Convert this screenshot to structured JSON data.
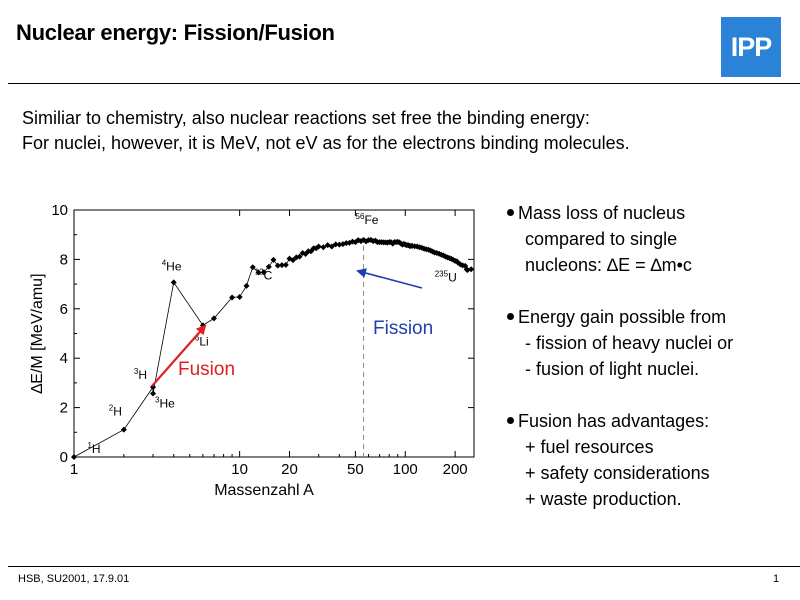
{
  "slide": {
    "title": "Nuclear energy: Fission/Fusion",
    "logo_text": "IPP",
    "logo_color": "#2a83d6",
    "intro_line1": "Similiar to chemistry, also nuclear  reactions set free the binding energy:",
    "intro_line2": "For nuclei,  however, it is MeV, not eV as for the electrons binding molecules.",
    "footer_left": "HSB, SU2001, 17.9.01",
    "page_number": "1"
  },
  "bullets": [
    {
      "lines": [
        "Mass loss of nucleus",
        "compared to single",
        "nucleons:   ∆E = ∆m•c"
      ]
    },
    {
      "lines": [
        "Energy gain possible from",
        "- fission of heavy nuclei  or",
        "- fusion of light nuclei."
      ]
    },
    {
      "lines": [
        "Fusion has advantages:",
        "+ fuel resources",
        "+ safety considerations",
        "+ waste production."
      ]
    }
  ],
  "chart_data": {
    "type": "scatter",
    "xlabel": "Massenzahl A",
    "ylabel": "∆E/M   [MeV/amu]",
    "x_scale": "log",
    "xlim": [
      1,
      260
    ],
    "ylim": [
      0,
      10
    ],
    "x_ticks": [
      1,
      10,
      20,
      50,
      100,
      200
    ],
    "y_ticks": [
      0,
      2,
      4,
      6,
      8,
      10
    ],
    "reference_line_x": 56,
    "series": [
      {
        "points": [
          [
            1,
            0
          ],
          [
            2,
            1.11
          ],
          [
            3,
            2.83
          ],
          [
            3,
            2.57
          ],
          [
            4,
            7.07
          ],
          [
            6,
            5.33
          ],
          [
            7,
            5.61
          ],
          [
            9,
            6.46
          ],
          [
            10,
            6.48
          ],
          [
            11,
            6.93
          ],
          [
            12,
            7.68
          ],
          [
            13,
            7.47
          ],
          [
            14,
            7.48
          ],
          [
            15,
            7.7
          ],
          [
            16,
            7.98
          ],
          [
            17,
            7.75
          ],
          [
            18,
            7.77
          ],
          [
            19,
            7.78
          ],
          [
            20,
            8.03
          ],
          [
            21,
            7.97
          ],
          [
            22,
            8.08
          ],
          [
            23,
            8.11
          ],
          [
            24,
            8.26
          ],
          [
            25,
            8.22
          ],
          [
            26,
            8.33
          ],
          [
            27,
            8.33
          ],
          [
            28,
            8.45
          ],
          [
            29,
            8.45
          ],
          [
            30,
            8.52
          ],
          [
            32,
            8.49
          ],
          [
            34,
            8.58
          ],
          [
            36,
            8.52
          ],
          [
            38,
            8.61
          ],
          [
            40,
            8.6
          ],
          [
            42,
            8.62
          ],
          [
            44,
            8.66
          ],
          [
            46,
            8.67
          ],
          [
            48,
            8.72
          ],
          [
            50,
            8.7
          ],
          [
            52,
            8.78
          ],
          [
            54,
            8.74
          ],
          [
            56,
            8.79
          ],
          [
            58,
            8.73
          ],
          [
            60,
            8.78
          ],
          [
            62,
            8.79
          ],
          [
            64,
            8.74
          ],
          [
            66,
            8.76
          ],
          [
            68,
            8.7
          ],
          [
            70,
            8.7
          ],
          [
            72,
            8.7
          ],
          [
            74,
            8.69
          ],
          [
            76,
            8.69
          ],
          [
            78,
            8.68
          ],
          [
            80,
            8.7
          ],
          [
            82,
            8.7
          ],
          [
            84,
            8.64
          ],
          [
            86,
            8.7
          ],
          [
            88,
            8.7
          ],
          [
            90,
            8.71
          ],
          [
            92,
            8.69
          ],
          [
            94,
            8.65
          ],
          [
            96,
            8.6
          ],
          [
            98,
            8.63
          ],
          [
            100,
            8.6
          ],
          [
            102,
            8.58
          ],
          [
            104,
            8.58
          ],
          [
            106,
            8.55
          ],
          [
            108,
            8.54
          ],
          [
            110,
            8.55
          ],
          [
            114,
            8.53
          ],
          [
            118,
            8.52
          ],
          [
            122,
            8.49
          ],
          [
            126,
            8.47
          ],
          [
            130,
            8.43
          ],
          [
            134,
            8.41
          ],
          [
            138,
            8.39
          ],
          [
            142,
            8.36
          ],
          [
            146,
            8.32
          ],
          [
            150,
            8.28
          ],
          [
            155,
            8.26
          ],
          [
            160,
            8.23
          ],
          [
            165,
            8.19
          ],
          [
            170,
            8.16
          ],
          [
            175,
            8.11
          ],
          [
            180,
            8.08
          ],
          [
            185,
            8.05
          ],
          [
            190,
            8.02
          ],
          [
            195,
            7.98
          ],
          [
            200,
            7.94
          ],
          [
            205,
            7.92
          ],
          [
            208,
            7.87
          ],
          [
            215,
            7.8
          ],
          [
            222,
            7.76
          ],
          [
            230,
            7.74
          ],
          [
            235,
            7.59
          ],
          [
            238,
            7.57
          ],
          [
            250,
            7.6
          ]
        ]
      }
    ],
    "annotations": [
      {
        "text": "H",
        "mass": "1",
        "x": 1,
        "y": 0
      },
      {
        "text": "H",
        "mass": "2",
        "x": 2,
        "y": 1.11
      },
      {
        "text": "H",
        "mass": "3",
        "x": 3,
        "y": 2.83
      },
      {
        "text": "He",
        "mass": "3",
        "x": 3,
        "y": 2.57
      },
      {
        "text": "He",
        "mass": "4",
        "x": 4,
        "y": 7.07
      },
      {
        "text": "Li",
        "mass": "6",
        "x": 6,
        "y": 5.33
      },
      {
        "text": "C",
        "mass": "12",
        "x": 12,
        "y": 7.68
      },
      {
        "text": "Fe",
        "mass": "56",
        "x": 56,
        "y": 8.79
      },
      {
        "text": "U",
        "mass": "235",
        "x": 235,
        "y": 7.59
      }
    ],
    "fusion_label": "Fusion",
    "fusion_color": "#e02020",
    "fission_label": "Fission",
    "fission_color": "#1f3fb0"
  }
}
